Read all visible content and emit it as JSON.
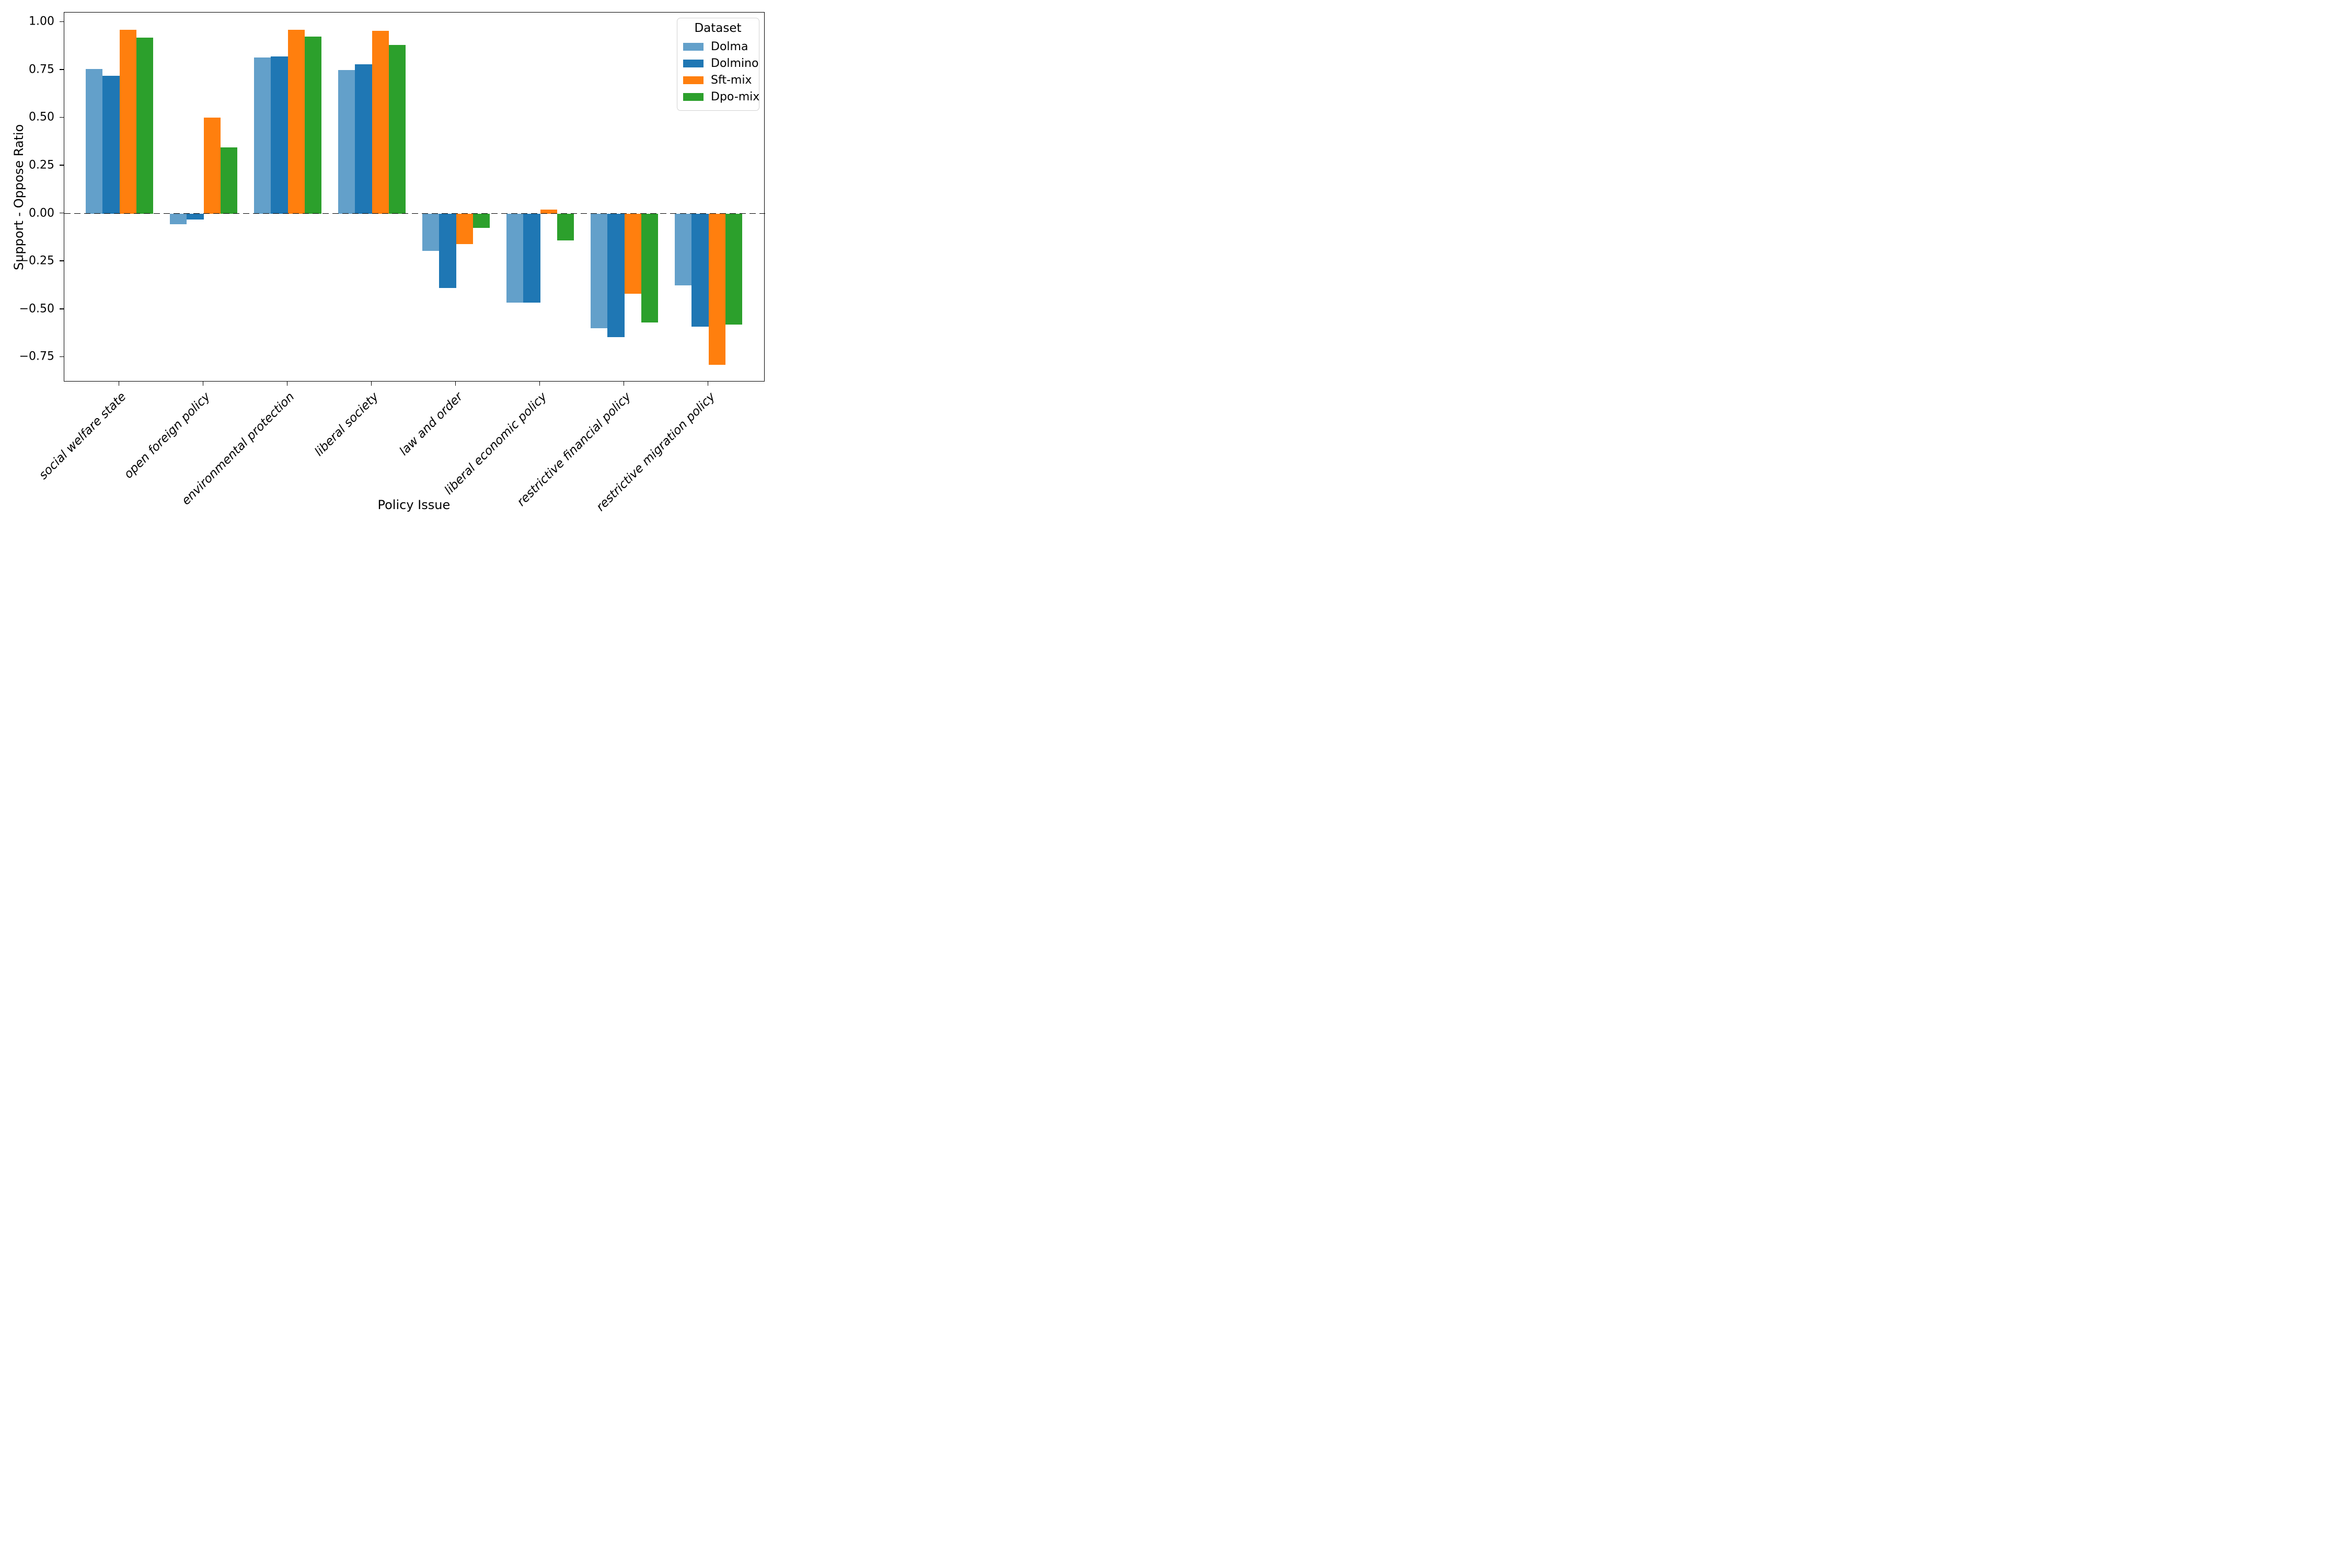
{
  "chart_data": {
    "type": "bar",
    "title": "",
    "xlabel": "Policy Issue",
    "ylabel": "Support - Oppose Ratio",
    "categories": [
      "social welfare state",
      "open foreign policy",
      "environmental protection",
      "liberal society",
      "law and order",
      "liberal economic policy",
      "restrictive financial policy",
      "restrictive migration policy"
    ],
    "series": [
      {
        "name": "Dolma",
        "color": "#63a0ca",
        "values": [
          0.755,
          -0.055,
          0.815,
          0.75,
          -0.195,
          -0.465,
          -0.6,
          -0.375
        ]
      },
      {
        "name": "Dolmino",
        "color": "#1f77b4",
        "values": [
          0.72,
          -0.03,
          0.82,
          0.78,
          -0.39,
          -0.465,
          -0.645,
          -0.59
        ]
      },
      {
        "name": "Sft-mix",
        "color": "#ff7f0e",
        "values": [
          0.96,
          0.5,
          0.96,
          0.955,
          -0.16,
          0.02,
          -0.42,
          -0.79
        ]
      },
      {
        "name": "Dpo-mix",
        "color": "#2ca02c",
        "values": [
          0.92,
          0.345,
          0.925,
          0.88,
          -0.075,
          -0.14,
          -0.57,
          -0.58
        ]
      }
    ],
    "ylim": [
      -0.88,
      1.05
    ],
    "yticks": [
      1.0,
      0.75,
      0.5,
      0.25,
      0.0,
      -0.25,
      -0.5,
      -0.75
    ],
    "ytick_labels": [
      "1.00",
      "0.75",
      "0.50",
      "0.25",
      "0.00",
      "−0.25",
      "−0.50",
      "−0.75"
    ],
    "zero_line": true,
    "grid": false,
    "legend": {
      "title": "Dataset",
      "entries": [
        "Dolma",
        "Dolmino",
        "Sft-mix",
        "Dpo-mix"
      ],
      "position": "upper-right"
    }
  }
}
